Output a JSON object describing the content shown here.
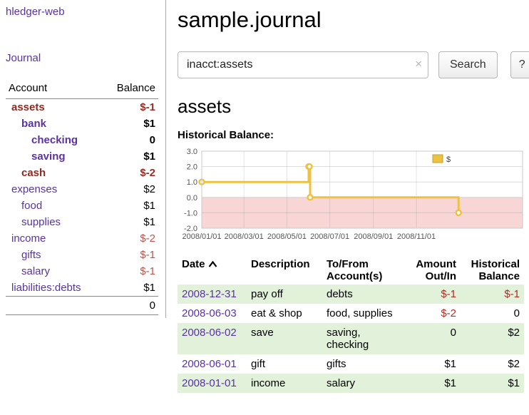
{
  "sidebar": {
    "app_title": "hledger-web",
    "journal_link": "Journal",
    "columns": {
      "account": "Account",
      "balance": "Balance"
    },
    "accounts": [
      {
        "name": "assets",
        "balance": "$-1",
        "depth": 1,
        "bold": true,
        "negative": true
      },
      {
        "name": "bank",
        "balance": "$1",
        "depth": 2,
        "bold": true,
        "negative": false
      },
      {
        "name": "checking",
        "balance": "0",
        "depth": 3,
        "bold": true,
        "negative": false
      },
      {
        "name": "saving",
        "balance": "$1",
        "depth": 3,
        "bold": true,
        "negative": false
      },
      {
        "name": "cash",
        "balance": "$-2",
        "depth": 2,
        "bold": true,
        "negative": true
      },
      {
        "name": "expenses",
        "balance": "$2",
        "depth": 1,
        "bold": false,
        "negative": false
      },
      {
        "name": "food",
        "balance": "$1",
        "depth": 2,
        "bold": false,
        "negative": false
      },
      {
        "name": "supplies",
        "balance": "$1",
        "depth": 2,
        "bold": false,
        "negative": false
      },
      {
        "name": "income",
        "balance": "$-2",
        "depth": 1,
        "bold": false,
        "negative": true
      },
      {
        "name": "gifts",
        "balance": "$-1",
        "depth": 2,
        "bold": false,
        "negative": true
      },
      {
        "name": "salary",
        "balance": "$-1",
        "depth": 2,
        "bold": false,
        "negative": true
      },
      {
        "name": "liabilities:debts",
        "balance": "$1",
        "depth": 1,
        "bold": false,
        "negative": false
      }
    ],
    "total": "0"
  },
  "main": {
    "title": "sample.journal",
    "search": {
      "value": "inacct:assets",
      "clear_icon": "×",
      "button_label": "Search",
      "help_label": "?"
    },
    "account_heading": "assets",
    "chart_heading": "Historical Balance:"
  },
  "chart_data": {
    "type": "line",
    "title": "Historical Balance",
    "legend_position": "top-right-inset",
    "legend": [
      {
        "label": "$",
        "color": "#edc240"
      }
    ],
    "ylim": [
      -2.0,
      3.0
    ],
    "yticks": [
      "3.0",
      "2.0",
      "1.0",
      "0.0",
      "-1.0",
      "-2.0"
    ],
    "xticks": [
      "2008/01/01",
      "2008/03/01",
      "2008/05/01",
      "2008/07/01",
      "2008/09/01",
      "2008/11/01"
    ],
    "x_range": [
      "2008-01-01",
      "2009-04-01"
    ],
    "grid": true,
    "series": [
      {
        "name": "$",
        "step": true,
        "points": [
          {
            "date": "2008-01-01",
            "value": 1
          },
          {
            "date": "2008-06-01",
            "value": 2
          },
          {
            "date": "2008-06-02",
            "value": 2
          },
          {
            "date": "2008-06-03",
            "value": 0
          },
          {
            "date": "2008-12-31",
            "value": -1
          }
        ]
      }
    ],
    "line_color": "#edc240",
    "negative_fill": "#f9d6d6"
  },
  "register": {
    "headers": {
      "date": "Date",
      "description": "Description",
      "tofrom": "To/From Account(s)",
      "amount": "Amount Out/In",
      "histbal": "Historical Balance"
    },
    "sort_icon": "chevron-up",
    "rows": [
      {
        "date": "2008-12-31",
        "description": "pay off",
        "tofrom": "debts",
        "amount": "$-1",
        "amount_neg": true,
        "histbal": "$-1",
        "histbal_neg": true
      },
      {
        "date": "2008-06-03",
        "description": "eat & shop",
        "tofrom": "food, supplies",
        "amount": "$-2",
        "amount_neg": true,
        "histbal": "0",
        "histbal_neg": false
      },
      {
        "date": "2008-06-02",
        "description": "save",
        "tofrom": "saving, checking",
        "amount": "0",
        "amount_neg": false,
        "histbal": "$2",
        "histbal_neg": false
      },
      {
        "date": "2008-06-01",
        "description": "gift",
        "tofrom": "gifts",
        "amount": "$1",
        "amount_neg": false,
        "histbal": "$2",
        "histbal_neg": false
      },
      {
        "date": "2008-01-01",
        "description": "income",
        "tofrom": "salary",
        "amount": "$1",
        "amount_neg": false,
        "histbal": "$1",
        "histbal_neg": false
      }
    ]
  },
  "colors": {
    "link_purple": "#5a32a3",
    "negative_red": "#ae2e24",
    "row_green": "#e1f1da",
    "chart_line": "#edc240",
    "chart_negative_region": "#f9d6d6"
  }
}
